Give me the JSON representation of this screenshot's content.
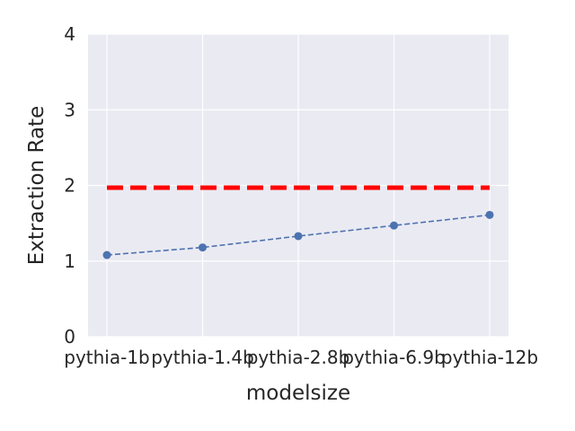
{
  "chart_data": {
    "type": "line",
    "title": "",
    "xlabel": "modelsize",
    "ylabel": "Extraction Rate",
    "categories": [
      "pythia-1b",
      "pythia-1.4b",
      "pythia-2.8b",
      "pythia-6.9b",
      "pythia-12b"
    ],
    "ylim": [
      0,
      4
    ],
    "yticks": [
      0,
      1,
      2,
      3,
      4
    ],
    "grid": true,
    "legend": "none",
    "series": [
      {
        "values": [
          1.08,
          1.18,
          1.33,
          1.47,
          1.61
        ],
        "color": "#4c72b0",
        "line_style": "dashed",
        "marker": "circle"
      }
    ],
    "reference_line": {
      "value": 1.97,
      "color": "#ff0000",
      "line_style": "dashed"
    }
  }
}
